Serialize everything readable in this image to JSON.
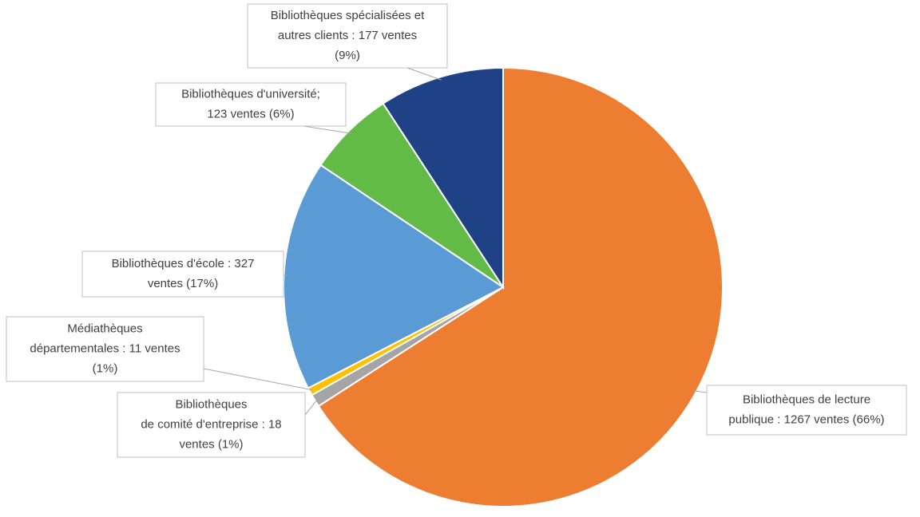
{
  "chart_data": {
    "type": "pie",
    "values": [
      1267,
      18,
      11,
      327,
      123,
      177
    ],
    "value_labels": [
      [
        "Bibliothèques de lecture",
        "publique : 1267 ventes (66%)"
      ],
      [
        "Bibliothèques",
        "de comité d'entreprise : 18",
        "ventes (1%)"
      ],
      [
        "Médiathèques",
        "départementales : 11 ventes",
        "(1%)"
      ],
      [
        "Bibliothèques d'école : 327",
        "ventes (17%)"
      ],
      [
        "Bibliothèques d'université;",
        "123 ventes (6%)"
      ],
      [
        "Bibliothèques spécialisées et",
        "autres clients : 177 ventes",
        "(9%)"
      ]
    ],
    "colors": [
      "#ed7d31",
      "#a5a5a5",
      "#ffc000",
      "#5b9bd5",
      "#62bb46",
      "#1f4185"
    ]
  }
}
